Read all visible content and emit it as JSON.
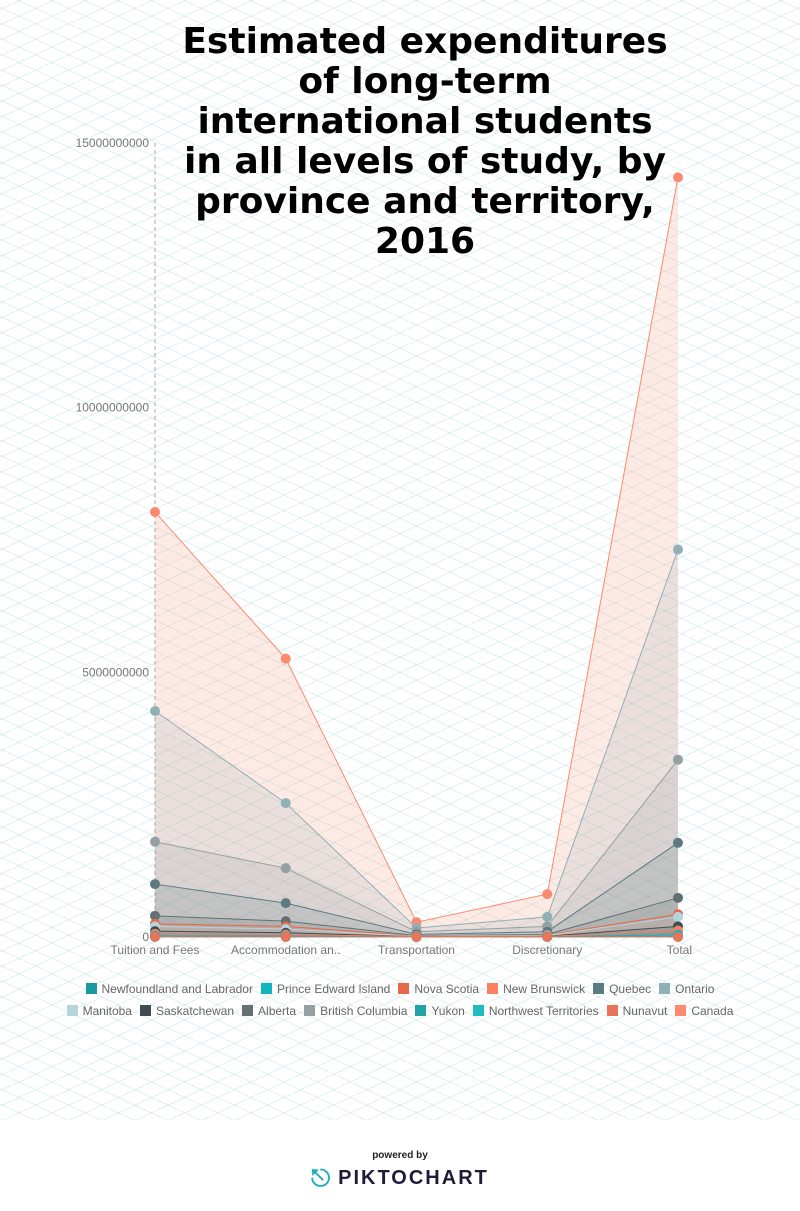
{
  "chart_data": {
    "type": "area",
    "title": "Estimated expenditures of long-term international students in all levels of study, by province and territory, 2016",
    "xlabel": "",
    "ylabel": "",
    "categories": [
      "Tuition and Fees",
      "Accommodation an..",
      "Transportation",
      "Discretionary",
      "Total"
    ],
    "ylim": [
      0,
      15000000000
    ],
    "yticks": [
      0,
      5000000000,
      10000000000,
      15000000000
    ],
    "ytick_labels": [
      "0",
      "5000000000",
      "10000000000",
      "15000000000"
    ],
    "legend_position": "bottom",
    "series": [
      {
        "name": "Newfoundland and Labrador",
        "color": "#17999e",
        "values": [
          60000000,
          40000000,
          8000000,
          12000000,
          120000000
        ]
      },
      {
        "name": "Prince Edward Island",
        "color": "#12b5bd",
        "values": [
          20000000,
          15000000,
          3000000,
          4000000,
          42000000
        ]
      },
      {
        "name": "Nova Scotia",
        "color": "#e8694a",
        "values": [
          250000000,
          200000000,
          20000000,
          40000000,
          430000000
        ]
      },
      {
        "name": "New Brunswick",
        "color": "#fb8062",
        "values": [
          60000000,
          45000000,
          8000000,
          10000000,
          120000000
        ]
      },
      {
        "name": "Quebec",
        "color": "#5b7b80",
        "values": [
          1000000000,
          640000000,
          50000000,
          100000000,
          1780000000
        ]
      },
      {
        "name": "Ontario",
        "color": "#90b0b5",
        "values": [
          4270000000,
          2530000000,
          170000000,
          380000000,
          7320000000
        ]
      },
      {
        "name": "Manitoba",
        "color": "#b3d6dc",
        "values": [
          200000000,
          150000000,
          15000000,
          30000000,
          380000000
        ]
      },
      {
        "name": "Saskatchewan",
        "color": "#3f4d51",
        "values": [
          110000000,
          80000000,
          8000000,
          15000000,
          200000000
        ]
      },
      {
        "name": "Alberta",
        "color": "#636f71",
        "values": [
          400000000,
          300000000,
          25000000,
          50000000,
          740000000
        ]
      },
      {
        "name": "British Columbia",
        "color": "#95a0a2",
        "values": [
          1800000000,
          1300000000,
          100000000,
          200000000,
          3350000000
        ]
      },
      {
        "name": "Yukon",
        "color": "#1fa3a6",
        "values": [
          3000000,
          2000000,
          500000,
          500000,
          6000000
        ]
      },
      {
        "name": "Northwest Territories",
        "color": "#20bcc0",
        "values": [
          2000000,
          1500000,
          300000,
          300000,
          4000000
        ]
      },
      {
        "name": "Nunavut",
        "color": "#e8745a",
        "values": [
          500000,
          400000,
          100000,
          100000,
          1000000
        ]
      },
      {
        "name": "Canada",
        "color": "#fb8a70",
        "values": [
          8030000000,
          5260000000,
          280000000,
          810000000,
          14350000000
        ]
      }
    ]
  },
  "footer": {
    "powered_by": "powered by",
    "brand": "PIKTOCHART"
  }
}
